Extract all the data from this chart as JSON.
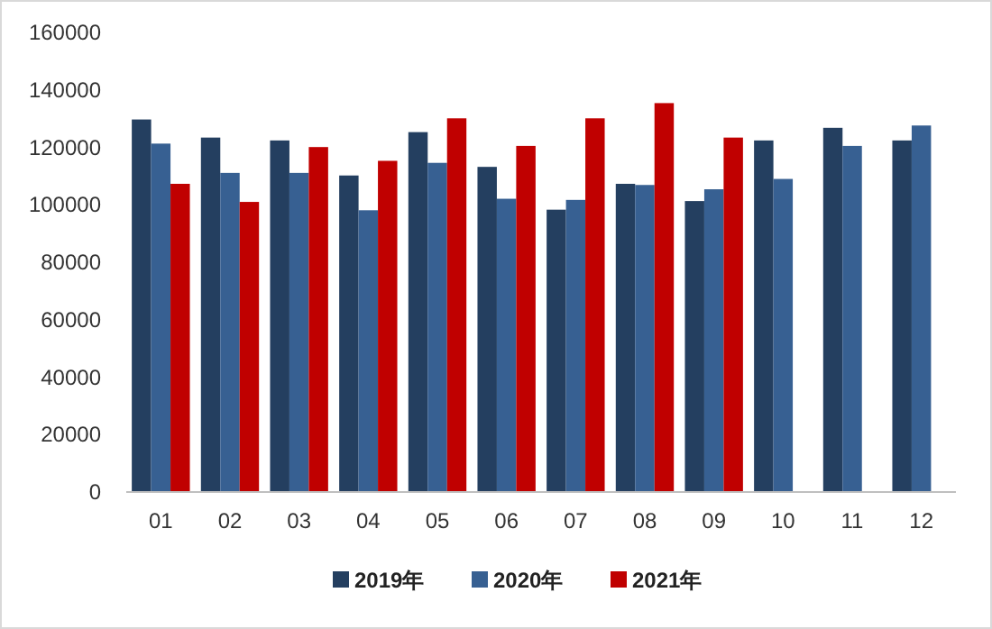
{
  "chart_data": {
    "type": "bar",
    "categories": [
      "01",
      "02",
      "03",
      "04",
      "05",
      "06",
      "07",
      "08",
      "09",
      "10",
      "11",
      "12"
    ],
    "series": [
      {
        "name": "2019年",
        "color": "#243f60",
        "values": [
          129700,
          123400,
          122400,
          110200,
          125300,
          113200,
          98300,
          107300,
          101300,
          122400,
          126800,
          122400
        ]
      },
      {
        "name": "2020年",
        "color": "#376092",
        "values": [
          121300,
          111100,
          111100,
          98100,
          114600,
          102100,
          101700,
          106900,
          105400,
          109000,
          120500,
          127600
        ]
      },
      {
        "name": "2021年",
        "color": "#c00000",
        "values": [
          107300,
          101000,
          120100,
          115300,
          130100,
          120500,
          130100,
          135400,
          123400,
          null,
          null,
          null
        ]
      }
    ],
    "ylim": [
      0,
      160000
    ],
    "yticks": [
      0,
      20000,
      40000,
      60000,
      80000,
      100000,
      120000,
      140000,
      160000
    ],
    "grid": false,
    "legend": "bottom"
  }
}
